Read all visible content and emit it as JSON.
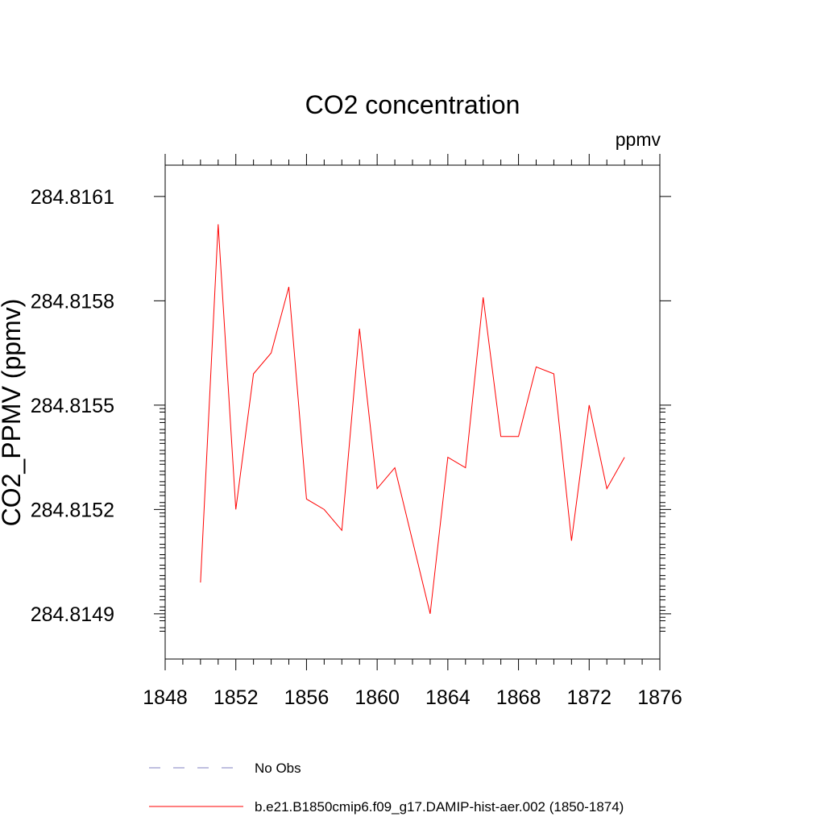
{
  "chart_data": {
    "type": "line",
    "title": "CO2 concentration",
    "units_label": "ppmv",
    "ylabel": "CO2_PPMV  (ppmv)",
    "xlabel": "",
    "xlim": [
      1848,
      1876
    ],
    "ylim": [
      284.81477,
      284.81619
    ],
    "x_ticks": [
      1848,
      1852,
      1856,
      1860,
      1864,
      1868,
      1872,
      1876
    ],
    "y_ticks": [
      284.8149,
      284.8152,
      284.8155,
      284.8158,
      284.8161
    ],
    "y_tick_labels": [
      "284.8149",
      "284.8152",
      "284.8155",
      "284.8158",
      "284.8161"
    ],
    "series": [
      {
        "name": "b.e21.B1850cmip6.f09_g17.DAMIP-hist-aer.002 (1850-1874)",
        "color": "#ff0000",
        "style": "solid",
        "x": [
          1850,
          1851,
          1852,
          1853,
          1854,
          1855,
          1856,
          1857,
          1858,
          1859,
          1860,
          1861,
          1862,
          1863,
          1864,
          1865,
          1866,
          1867,
          1868,
          1869,
          1870,
          1871,
          1872,
          1873,
          1874
        ],
        "y": [
          284.81499,
          284.81602,
          284.8152,
          284.81559,
          284.81565,
          284.81584,
          284.81523,
          284.8152,
          284.81514,
          284.81572,
          284.81526,
          284.81532,
          284.81511,
          284.8149,
          284.81535,
          284.81532,
          284.81581,
          284.81541,
          284.81541,
          284.81561,
          284.81559,
          284.81511,
          284.8155,
          284.81526,
          284.81535
        ]
      }
    ],
    "legend": [
      {
        "label": "No Obs",
        "color": "#8080c0",
        "style": "dashed"
      },
      {
        "label": "b.e21.B1850cmip6.f09_g17.DAMIP-hist-aer.002 (1850-1874)",
        "color": "#ff0000",
        "style": "solid"
      }
    ],
    "grid": false,
    "legend_position": "bottom"
  }
}
